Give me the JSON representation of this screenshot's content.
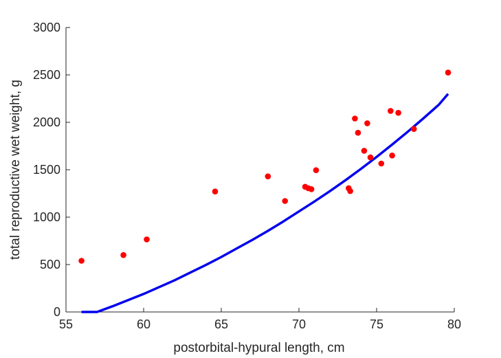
{
  "chart_data": {
    "type": "scatter",
    "title": "",
    "xlabel": "postorbital-hypural length, cm",
    "ylabel": "total reproductive wet weight, g",
    "xlim": [
      55,
      80
    ],
    "ylim": [
      0,
      3000
    ],
    "xticks": [
      "55",
      "60",
      "65",
      "70",
      "75",
      "80"
    ],
    "yticks": [
      "0",
      "500",
      "1000",
      "1500",
      "2000",
      "2500",
      "3000"
    ],
    "grid": false,
    "legend": "none",
    "point_color": "#ff0000",
    "line_color": "#0000ee",
    "series": [
      {
        "type": "scatter",
        "points": [
          [
            56.0,
            540
          ],
          [
            58.7,
            600
          ],
          [
            60.2,
            765
          ],
          [
            64.6,
            1270
          ],
          [
            68.0,
            1430
          ],
          [
            69.1,
            1170
          ],
          [
            70.4,
            1320
          ],
          [
            70.6,
            1305
          ],
          [
            70.8,
            1295
          ],
          [
            71.1,
            1495
          ],
          [
            73.2,
            1305
          ],
          [
            73.3,
            1275
          ],
          [
            73.6,
            2040
          ],
          [
            73.8,
            1890
          ],
          [
            74.2,
            1700
          ],
          [
            74.4,
            1990
          ],
          [
            74.6,
            1630
          ],
          [
            75.3,
            1565
          ],
          [
            75.9,
            2120
          ],
          [
            76.0,
            1650
          ],
          [
            76.4,
            2100
          ],
          [
            77.4,
            1930
          ],
          [
            79.6,
            2525
          ]
        ]
      },
      {
        "type": "line",
        "points": [
          [
            56.0,
            0
          ],
          [
            57.0,
            0
          ],
          [
            58.0,
            60
          ],
          [
            59.0,
            125
          ],
          [
            60.0,
            190
          ],
          [
            61.0,
            262
          ],
          [
            62.0,
            335
          ],
          [
            63.0,
            415
          ],
          [
            64.0,
            495
          ],
          [
            65.0,
            580
          ],
          [
            66.0,
            670
          ],
          [
            67.0,
            760
          ],
          [
            68.0,
            855
          ],
          [
            69.0,
            955
          ],
          [
            70.0,
            1060
          ],
          [
            71.0,
            1165
          ],
          [
            72.0,
            1275
          ],
          [
            73.0,
            1390
          ],
          [
            74.0,
            1510
          ],
          [
            75.0,
            1635
          ],
          [
            76.0,
            1765
          ],
          [
            77.0,
            1900
          ],
          [
            78.0,
            2040
          ],
          [
            79.0,
            2185
          ],
          [
            79.6,
            2300
          ]
        ]
      }
    ]
  }
}
